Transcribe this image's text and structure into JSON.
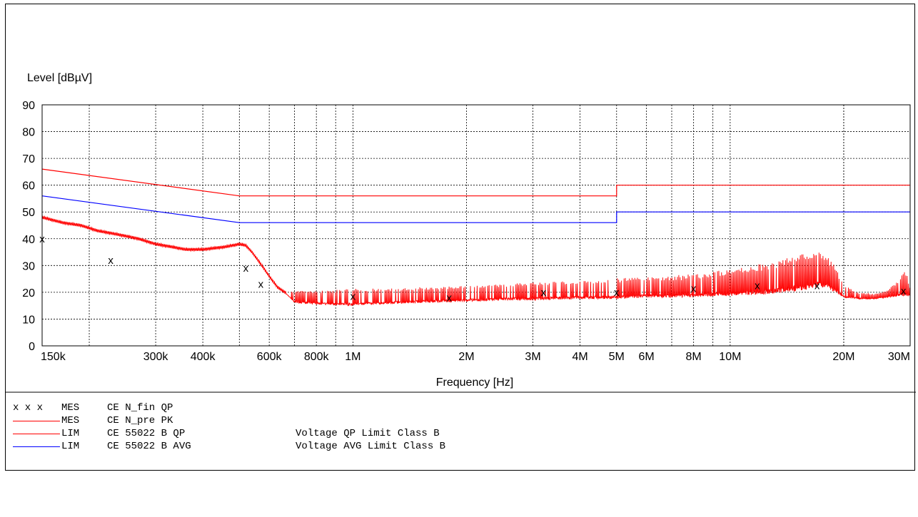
{
  "chart_data": {
    "type": "line",
    "ylabel": "Level [dBµV]",
    "xlabel": "Frequency [Hz]",
    "x_scale": "log",
    "xlim": [
      150000,
      30000000
    ],
    "ylim": [
      0,
      90
    ],
    "y_ticks": [
      0,
      10,
      20,
      30,
      40,
      50,
      60,
      70,
      80,
      90
    ],
    "x_ticks": [
      {
        "value": 150000,
        "label": "150k"
      },
      {
        "value": 300000,
        "label": "300k"
      },
      {
        "value": 400000,
        "label": "400k"
      },
      {
        "value": 600000,
        "label": "600k"
      },
      {
        "value": 800000,
        "label": "800k"
      },
      {
        "value": 1000000,
        "label": "1M"
      },
      {
        "value": 2000000,
        "label": "2M"
      },
      {
        "value": 3000000,
        "label": "3M"
      },
      {
        "value": 4000000,
        "label": "4M"
      },
      {
        "value": 5000000,
        "label": "5M"
      },
      {
        "value": 6000000,
        "label": "6M"
      },
      {
        "value": 8000000,
        "label": "8M"
      },
      {
        "value": 10000000,
        "label": "10M"
      },
      {
        "value": 20000000,
        "label": "20M"
      },
      {
        "value": 30000000,
        "label": "30M"
      }
    ],
    "grid": true,
    "series": [
      {
        "legend_type": "LIM",
        "legend_name": "CE 55022 B QP",
        "name": "Voltage QP Limit Class B",
        "color": "#ff0000",
        "kind": "step",
        "x": [
          150000,
          500000,
          500000,
          5000000,
          5000000,
          30000000
        ],
        "y": [
          66,
          56,
          56,
          56,
          60,
          60
        ]
      },
      {
        "legend_type": "LIM",
        "legend_name": "CE 55022 B AVG",
        "name": "Voltage AVG Limit Class B",
        "color": "#0000ff",
        "kind": "step",
        "x": [
          150000,
          500000,
          500000,
          5000000,
          5000000,
          30000000
        ],
        "y": [
          56,
          46,
          46,
          46,
          50,
          50
        ]
      },
      {
        "legend_type": "MES",
        "legend_name": "CE N_pre PK",
        "color": "#ff0000",
        "kind": "trace",
        "x": [
          150000,
          170000,
          190000,
          210000,
          230000,
          250000,
          270000,
          300000,
          330000,
          360000,
          400000,
          430000,
          460000,
          500000,
          520000,
          540000,
          560000,
          580000,
          600000,
          630000,
          660000,
          700000,
          800000,
          900000,
          1000000,
          1200000,
          1500000,
          2000000,
          2500000,
          3000000,
          4000000,
          5000000,
          6000000,
          7000000,
          8000000,
          9000000,
          10000000,
          11000000,
          12000000,
          13000000,
          14000000,
          15000000,
          16000000,
          17000000,
          18000000,
          19000000,
          20000000,
          22000000,
          24000000,
          26000000,
          28000000,
          29000000,
          30000000
        ],
        "y": [
          48,
          46,
          45,
          43,
          42,
          41,
          40,
          38,
          37,
          36,
          36,
          36.5,
          37,
          38,
          37.5,
          35,
          32,
          29,
          26,
          22,
          20,
          19,
          18,
          17,
          16.5,
          17,
          17.5,
          18,
          18.5,
          19,
          19.5,
          20,
          20.5,
          21,
          21.5,
          22,
          23,
          24,
          25,
          26,
          27,
          28,
          30,
          31,
          30,
          27,
          22,
          18.5,
          18,
          19,
          21,
          22,
          20
        ],
        "fill_upper_y": [
          48,
          46,
          45,
          43,
          42,
          41,
          40,
          38,
          37,
          36,
          36,
          36.5,
          37,
          38,
          37.5,
          35,
          32,
          29,
          26,
          22,
          20,
          21,
          21,
          21.5,
          22,
          22,
          22.5,
          23,
          23.5,
          24.5,
          25,
          25.5,
          26,
          26.5,
          27,
          28,
          29,
          30,
          31,
          32,
          33,
          34,
          35,
          35.5,
          34,
          30,
          23,
          20,
          19.5,
          21,
          25,
          30,
          22
        ],
        "fill_lower_y": [
          48,
          46,
          45,
          43,
          42,
          41,
          40,
          38,
          37,
          36,
          36,
          36.5,
          37,
          38,
          37.5,
          35,
          32,
          29,
          26,
          22,
          20,
          16,
          15.5,
          15,
          15,
          15.5,
          16,
          16.5,
          17,
          17,
          17.5,
          17.5,
          18,
          18,
          18,
          18.5,
          18.5,
          19,
          19,
          19.5,
          20,
          20.5,
          21,
          22,
          21.5,
          20,
          18,
          17.5,
          17.5,
          18,
          18.5,
          18.5,
          18.5
        ]
      },
      {
        "legend_type": "MES",
        "legend_name": "CE N_fin QP",
        "color": "#000000",
        "kind": "markers",
        "marker": "x",
        "x": [
          150000,
          228000,
          520000,
          570000,
          1000000,
          1800000,
          3200000,
          5000000,
          8000000,
          11800000,
          17000000,
          28800000
        ],
        "y": [
          40,
          32,
          29,
          23,
          18.5,
          18,
          20,
          20,
          21.5,
          22.5,
          22.5,
          20.5
        ]
      }
    ]
  },
  "legend": [
    {
      "marker": "x x x",
      "type": "MES",
      "name": "CE N_fin QP",
      "desc": "",
      "color": "#000000"
    },
    {
      "marker": "",
      "type": "MES",
      "name": "CE N_pre PK",
      "desc": "",
      "color": "#ff0000"
    },
    {
      "marker": "",
      "type": "LIM",
      "name": "CE 55022 B QP",
      "desc": "Voltage QP Limit Class B",
      "color": "#ff0000"
    },
    {
      "marker": "",
      "type": "LIM",
      "name": "CE 55022 B AVG",
      "desc": "Voltage AVG Limit Class B",
      "color": "#0000ff"
    }
  ]
}
